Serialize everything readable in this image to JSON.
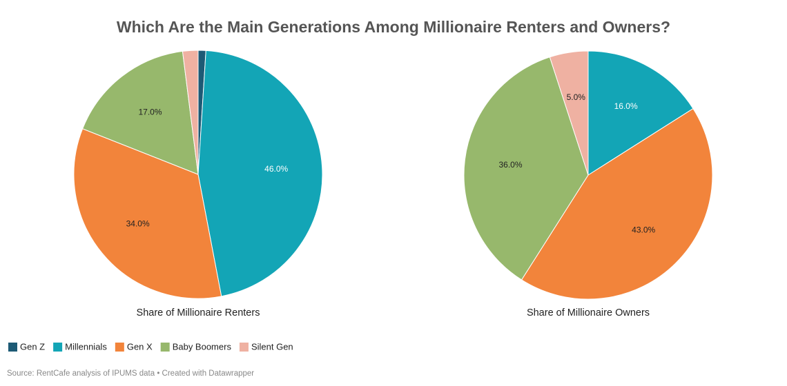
{
  "title": "Which Are the Main Generations Among Millionaire Renters and Owners?",
  "source": "Source: RentCafe analysis of IPUMS data • Created with Datawrapper",
  "chart_data": [
    {
      "type": "pie",
      "subtitle": "Share of Millionaire Renters",
      "categories": [
        "Gen Z",
        "Millennials",
        "Gen X",
        "Baby Boomers",
        "Silent Gen"
      ],
      "values": [
        1,
        46,
        34,
        17,
        2
      ],
      "value_labels": [
        null,
        "46.0%",
        "34.0%",
        "17.0%",
        null
      ],
      "colors": [
        "#1d5a75",
        "#13a5b6",
        "#f2843b",
        "#97b86c",
        "#efb1a2"
      ]
    },
    {
      "type": "pie",
      "subtitle": "Share of Millionaire Owners",
      "categories": [
        "Gen Z",
        "Millennials",
        "Gen X",
        "Baby Boomers",
        "Silent Gen"
      ],
      "values": [
        0,
        16,
        43,
        36,
        5
      ],
      "value_labels": [
        null,
        "16.0%",
        "43.0%",
        "36.0%",
        "5.0%"
      ],
      "colors": [
        "#1d5a75",
        "#13a5b6",
        "#f2843b",
        "#97b86c",
        "#efb1a2"
      ]
    }
  ]
}
